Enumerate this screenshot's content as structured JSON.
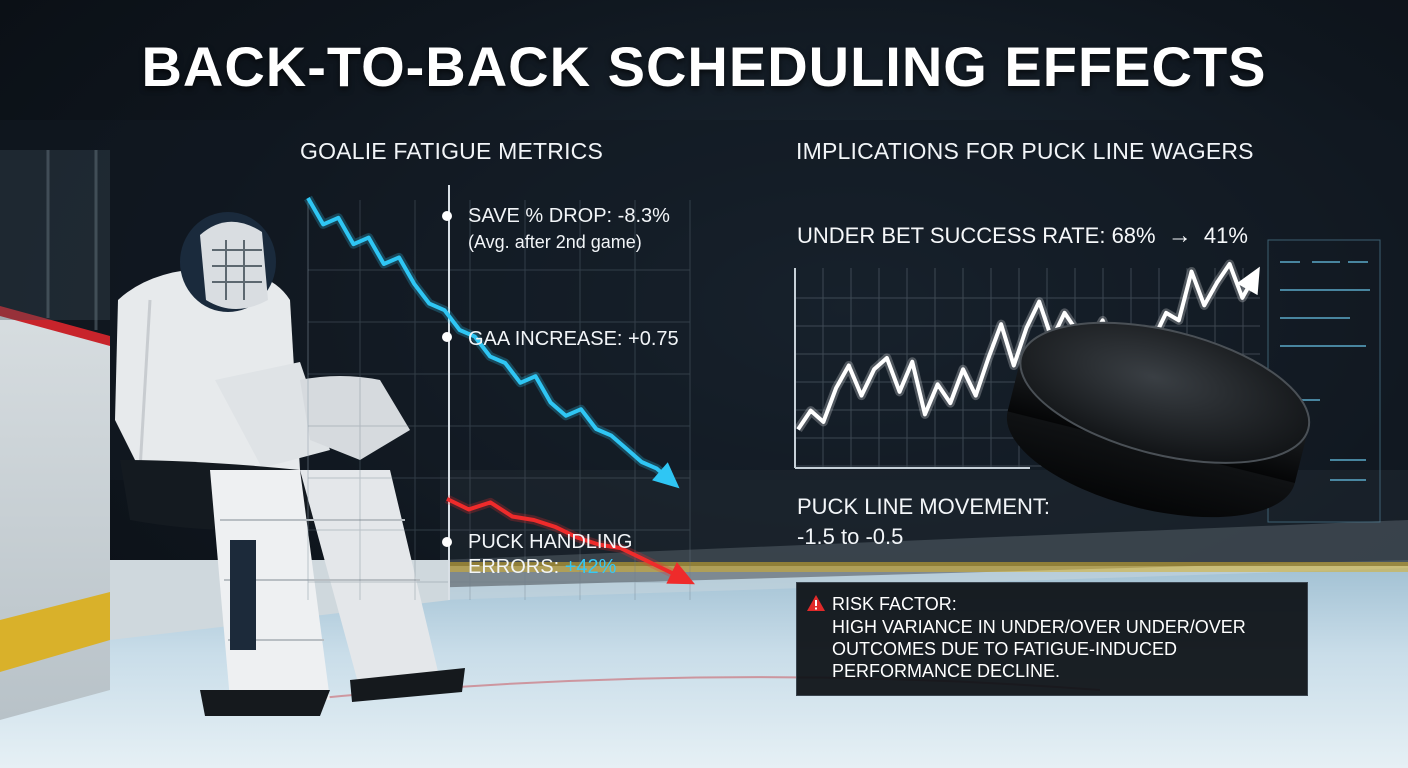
{
  "title": "BACK-TO-BACK SCHEDULING EFFECTS",
  "left": {
    "heading": "GOALIE FATIGUE METRICS",
    "metrics": {
      "save": {
        "label": "SAVE % DROP: -8.3%",
        "note": "(Avg. after 2nd game)"
      },
      "gaa": {
        "label": "GAA INCREASE: +0.75"
      },
      "puck": {
        "line1": "PUCK HANDLING",
        "line2_prefix": "ERRORS: ",
        "line2_value": "+42%"
      }
    },
    "chart_data": {
      "type": "line",
      "series": [
        {
          "color": "#2fc6f4",
          "values": [
            100,
            92,
            94,
            86,
            88,
            80,
            82,
            74,
            68,
            66,
            60,
            58,
            52,
            50,
            44,
            46,
            38,
            34,
            36,
            30,
            28,
            24,
            20,
            18,
            14
          ]
        },
        {
          "color": "#ef2b2b",
          "values": [
            62,
            56,
            60,
            52,
            50,
            46,
            40,
            36,
            34,
            28,
            22,
            16
          ]
        }
      ]
    }
  },
  "right": {
    "heading": "IMPLICATIONS FOR PUCK LINE WAGERS",
    "under_label": "UNDER BET SUCCESS RATE: 68%",
    "under_arrow": "→",
    "under_to": "41%",
    "chart_data": {
      "type": "line",
      "series": [
        {
          "color": "#ffffff",
          "values": [
            12,
            22,
            16,
            34,
            46,
            30,
            44,
            50,
            32,
            48,
            20,
            36,
            26,
            44,
            30,
            50,
            68,
            46,
            66,
            80,
            60,
            74,
            64,
            58,
            70,
            52,
            62,
            44,
            60,
            74,
            70,
            96,
            78,
            90,
            100,
            82,
            94
          ]
        }
      ]
    },
    "movement_label": "PUCK LINE MOVEMENT:",
    "movement_value": "-1.5 to -0.5",
    "risk": {
      "title": "RISK FACTOR:",
      "body": "HIGH VARIANCE IN UNDER/OVER UNDER/OVER OUTCOMES DUE TO FATIGUE-INDUCED PERFORMANCE DECLINE."
    }
  },
  "colors": {
    "cyan": "#35c8f5",
    "red": "#ef2b2b",
    "ice": "#cfe2ee",
    "board_yellow": "#d9b12a"
  },
  "icons": [
    "warning-icon",
    "hockey-goalie",
    "hockey-puck"
  ]
}
